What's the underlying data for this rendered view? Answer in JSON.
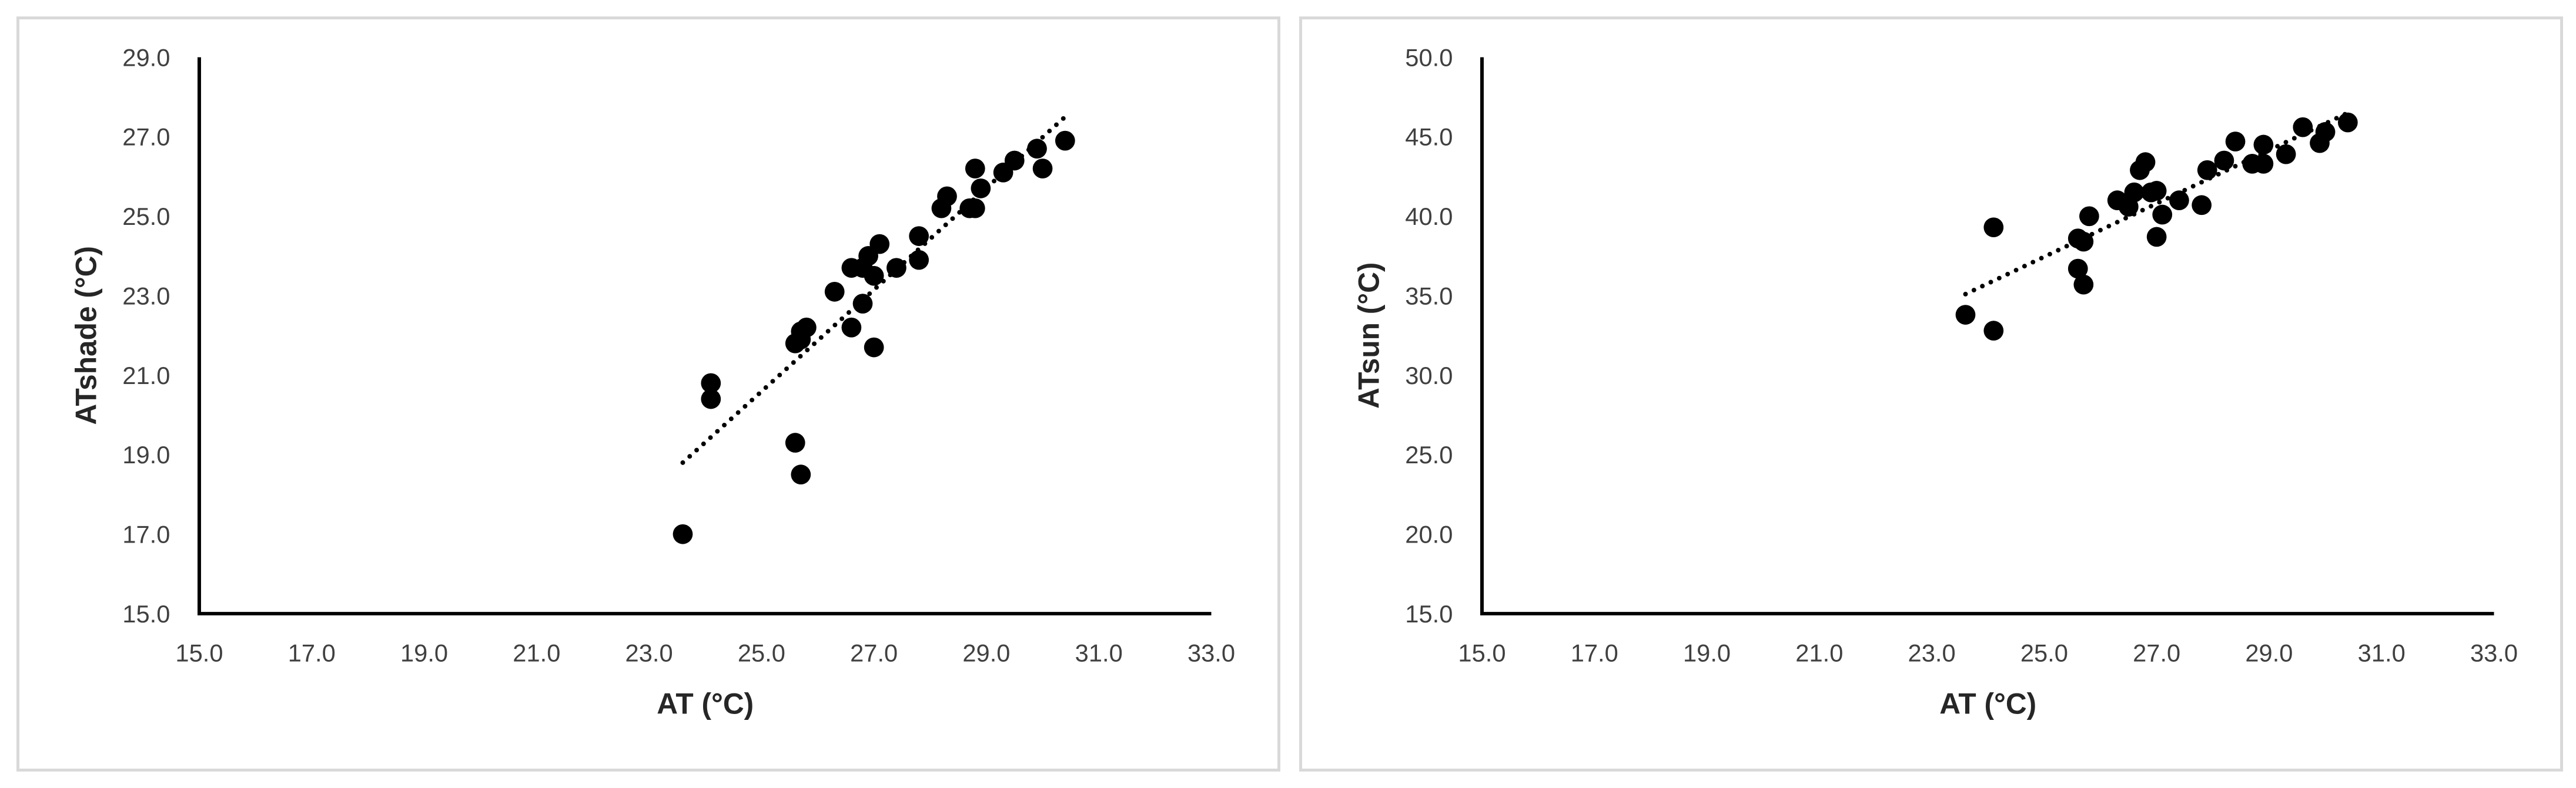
{
  "colors": {
    "marker": "#000000",
    "axis": "#000000",
    "border": "#d9d9d9",
    "text": "#404040"
  },
  "chart_data": [
    {
      "type": "scatter",
      "xlabel": "AT (°C)",
      "ylabel": "ATshade (°C)",
      "xlim": [
        15,
        33
      ],
      "ylim": [
        15,
        29
      ],
      "x_ticks": [
        "15.0",
        "17.0",
        "19.0",
        "21.0",
        "23.0",
        "25.0",
        "27.0",
        "29.0",
        "31.0",
        "33.0"
      ],
      "y_ticks": [
        "15.0",
        "17.0",
        "19.0",
        "21.0",
        "23.0",
        "25.0",
        "27.0",
        "29.0"
      ],
      "grid": false,
      "legend": "none",
      "trendline": {
        "style": "dotted",
        "x": [
          23.6,
          30.4
        ],
        "y": [
          18.8,
          27.5
        ]
      },
      "series": [
        {
          "x": [
            23.6,
            24.1,
            24.1,
            25.6,
            25.7,
            25.7,
            25.8,
            25.6,
            25.7,
            26.3,
            26.6,
            26.6,
            26.8,
            26.8,
            26.9,
            27.0,
            27.1,
            27.0,
            27.4,
            27.8,
            27.8,
            28.2,
            28.3,
            28.7,
            28.8,
            28.9,
            28.8,
            29.3,
            29.5,
            29.9,
            30.0,
            30.4
          ],
          "y": [
            17.0,
            20.4,
            20.8,
            19.3,
            18.5,
            22.1,
            22.2,
            21.8,
            21.9,
            23.1,
            22.2,
            23.7,
            22.8,
            23.7,
            24.0,
            21.7,
            24.3,
            23.5,
            23.7,
            24.5,
            23.9,
            25.2,
            25.5,
            25.2,
            26.2,
            25.7,
            25.2,
            26.1,
            26.4,
            26.7,
            26.2,
            26.9
          ]
        }
      ]
    },
    {
      "type": "scatter",
      "xlabel": "AT (°C)",
      "ylabel": "ATsun (°C)",
      "xlim": [
        15,
        33
      ],
      "ylim": [
        15,
        50
      ],
      "x_ticks": [
        "15.0",
        "17.0",
        "19.0",
        "21.0",
        "23.0",
        "25.0",
        "27.0",
        "29.0",
        "31.0",
        "33.0"
      ],
      "y_ticks": [
        "15.0",
        "20.0",
        "25.0",
        "30.0",
        "35.0",
        "40.0",
        "45.0",
        "50.0"
      ],
      "grid": false,
      "legend": "none",
      "trendline": {
        "style": "dotted",
        "x": [
          23.6,
          30.4
        ],
        "y": [
          35.1,
          46.5
        ]
      },
      "series": [
        {
          "x": [
            23.6,
            24.1,
            24.1,
            25.6,
            25.7,
            25.7,
            25.8,
            25.6,
            26.3,
            26.5,
            26.6,
            26.7,
            26.8,
            26.9,
            27.0,
            27.0,
            27.1,
            27.4,
            27.8,
            27.9,
            28.2,
            28.4,
            28.7,
            28.9,
            28.9,
            29.3,
            29.6,
            29.9,
            30.0,
            30.4
          ],
          "y": [
            33.8,
            32.8,
            39.3,
            38.6,
            35.7,
            38.4,
            40.0,
            36.7,
            41.0,
            40.6,
            41.5,
            42.9,
            43.4,
            41.5,
            41.6,
            38.7,
            40.1,
            41.0,
            40.7,
            42.9,
            43.5,
            44.7,
            43.3,
            43.3,
            44.5,
            43.9,
            45.6,
            44.6,
            45.3,
            45.9
          ]
        }
      ]
    }
  ]
}
